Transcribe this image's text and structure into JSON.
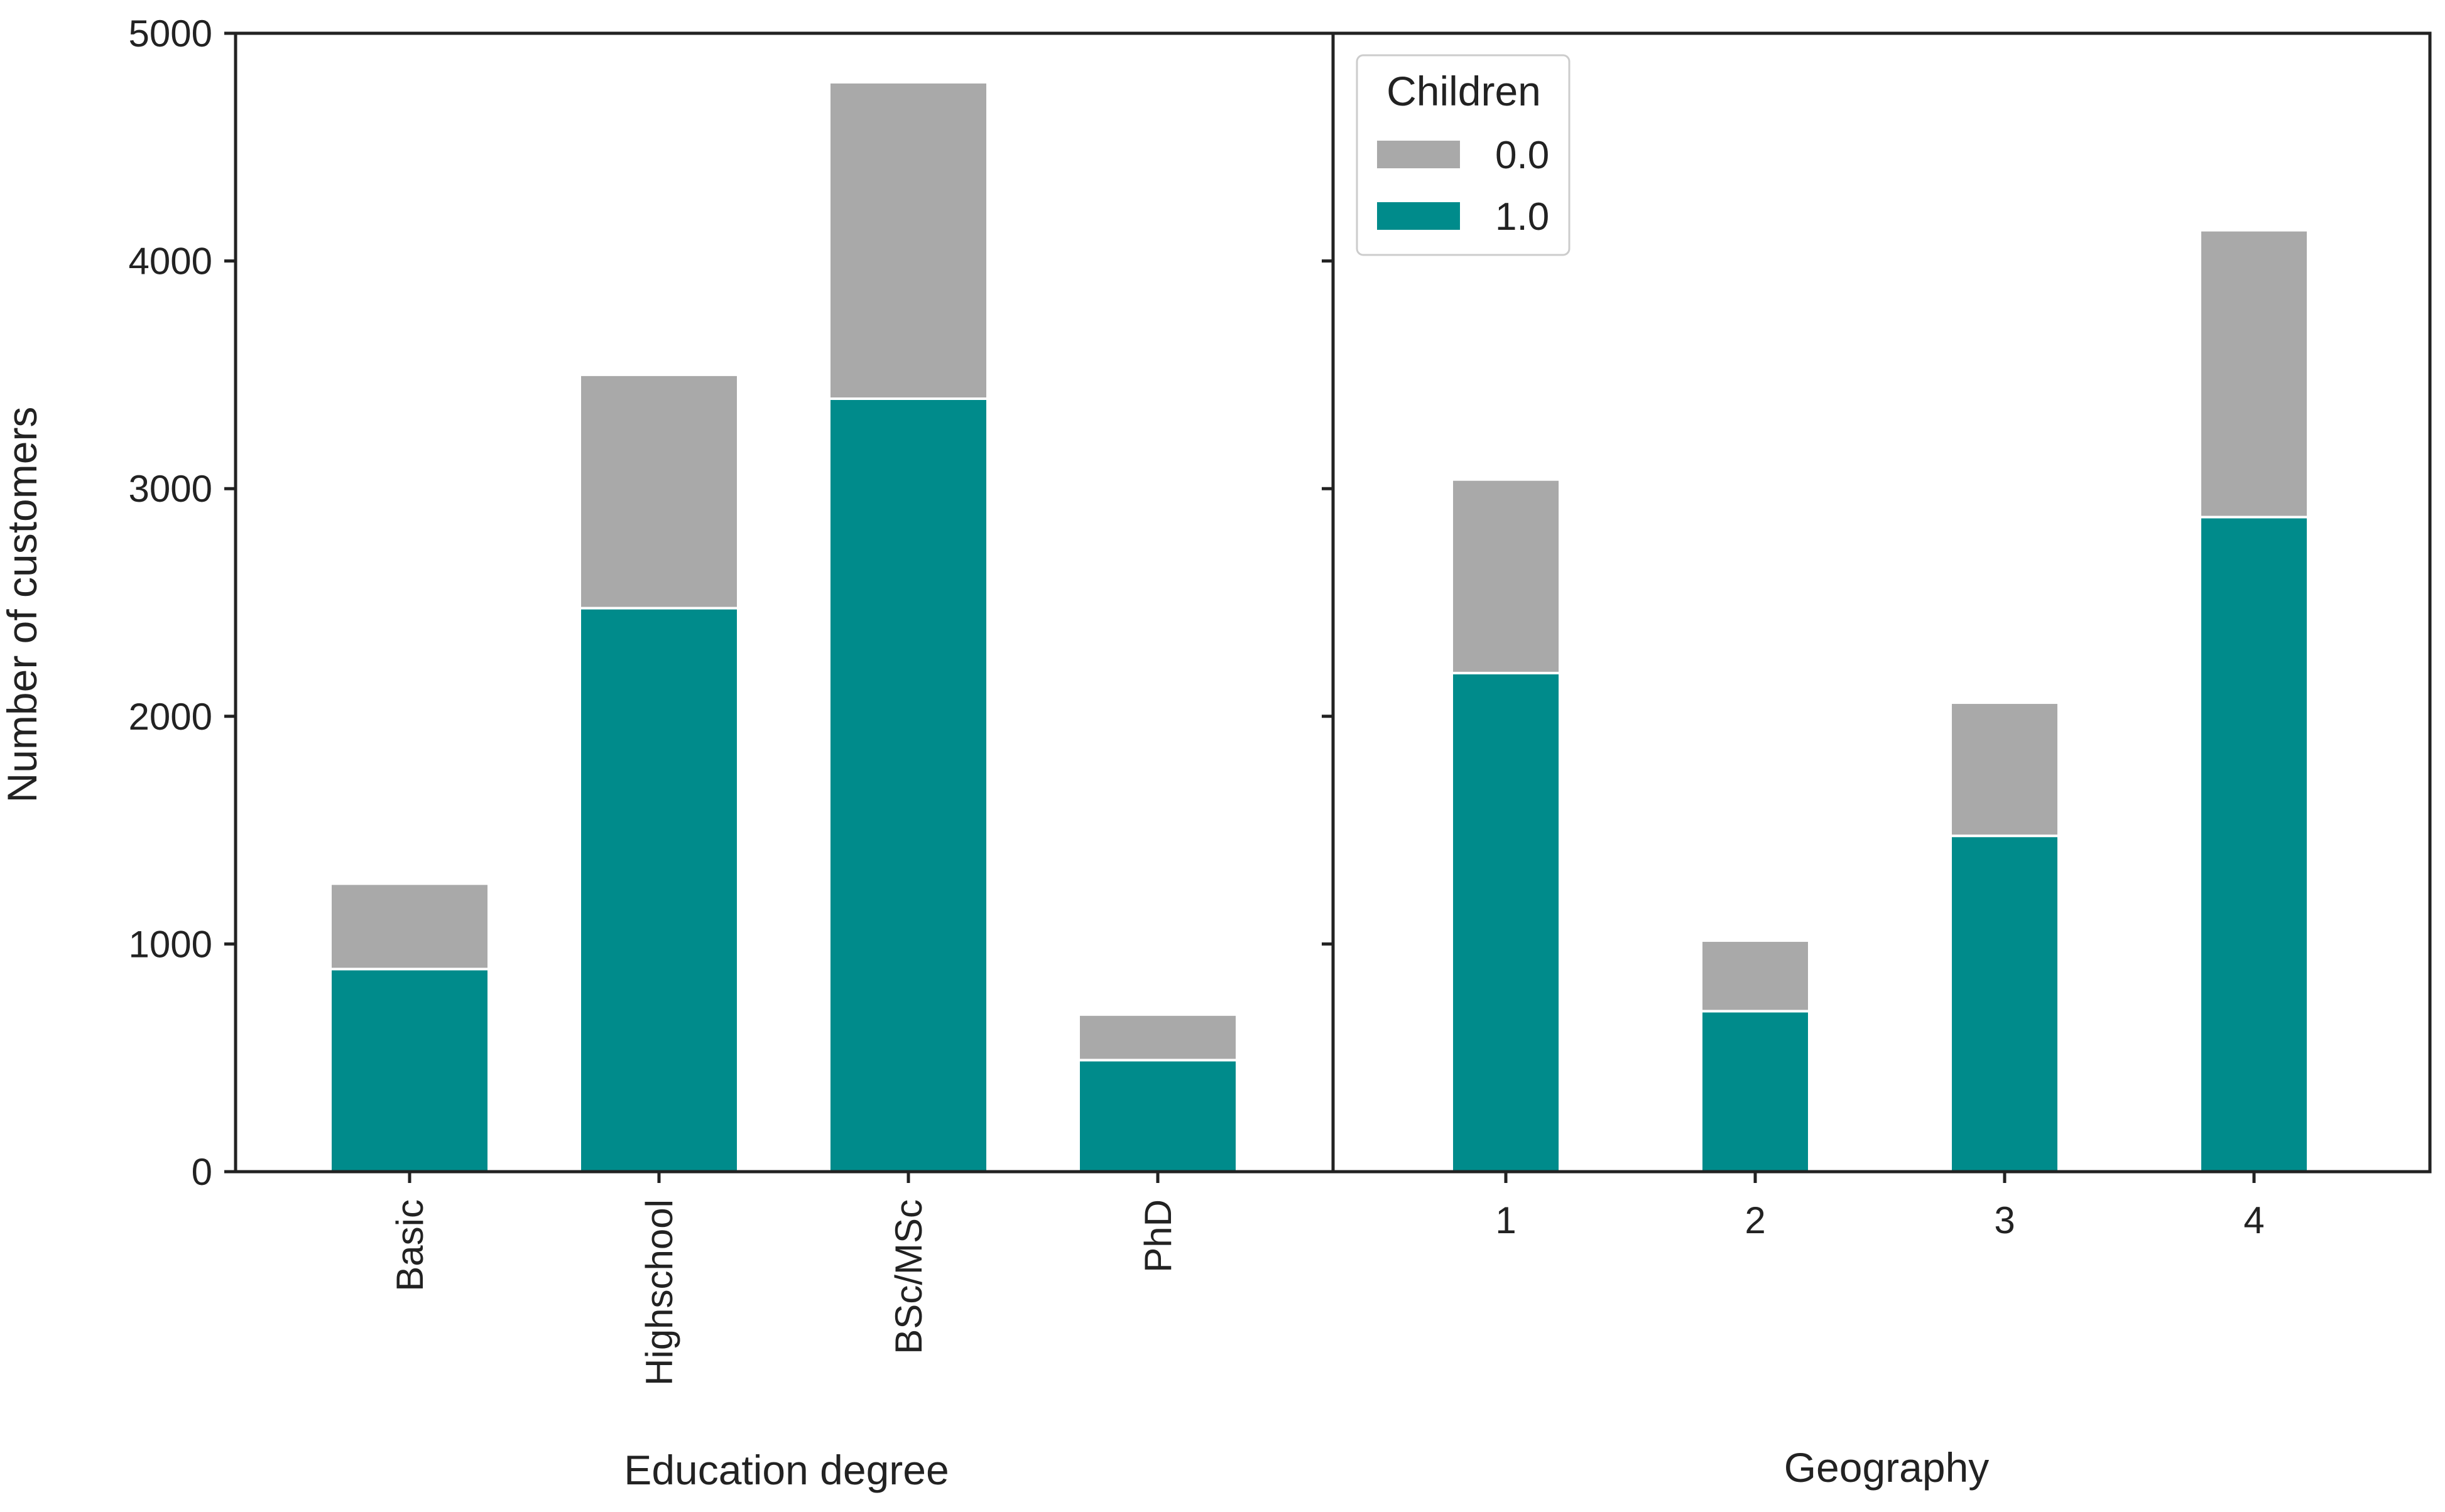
{
  "colors": {
    "no_children": "#a9a9a9",
    "children": "#008b8b"
  },
  "y_axis": {
    "label": "Number of customers",
    "ticks": [
      "0",
      "1000",
      "2000",
      "3000",
      "4000",
      "5000"
    ]
  },
  "legend": {
    "title": "Children",
    "entries": [
      {
        "label": "0.0",
        "color": "#a9a9a9"
      },
      {
        "label": "1.0",
        "color": "#008b8b"
      }
    ],
    "placement": "upper-left of right panel"
  },
  "chart_data": [
    {
      "type": "bar",
      "stacked": true,
      "xlabel": "Education degree",
      "ylabel": "Number of customers",
      "ylim": [
        0,
        5000
      ],
      "categories": [
        "Basic",
        "Highschool",
        "BSc/MSc",
        "PhD"
      ],
      "series": [
        {
          "name": "1.0",
          "values": [
            890,
            2475,
            3395,
            490
          ]
        },
        {
          "name": "0.0",
          "values": [
            375,
            1025,
            1390,
            200
          ]
        }
      ]
    },
    {
      "type": "bar",
      "stacked": true,
      "xlabel": "Geography",
      "ylabel": "",
      "ylim": [
        0,
        5000
      ],
      "categories": [
        "1",
        "2",
        "3",
        "4"
      ],
      "series": [
        {
          "name": "1.0",
          "values": [
            2190,
            705,
            1475,
            2875
          ]
        },
        {
          "name": "0.0",
          "values": [
            850,
            310,
            585,
            1260
          ]
        }
      ]
    }
  ]
}
